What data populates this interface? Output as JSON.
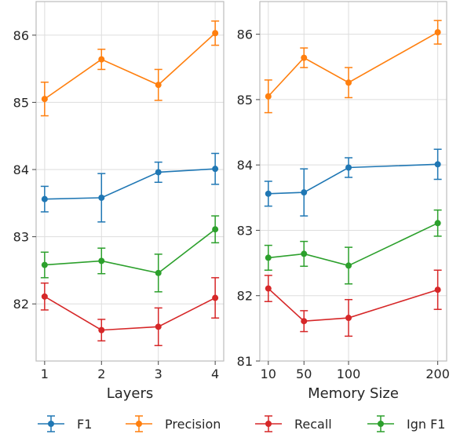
{
  "chart_data": [
    {
      "type": "line",
      "xlabel": "Layers",
      "ylabel": "",
      "x": [
        1,
        2,
        3,
        4
      ],
      "xticks": [
        1,
        2,
        3,
        4
      ],
      "xlim": [
        0.85,
        4.15
      ],
      "ylim": [
        81.15,
        86.5
      ],
      "yticks": [
        82,
        83,
        84,
        85,
        86
      ],
      "grid": true,
      "series": [
        {
          "name": "F1",
          "color": "#1f77b4",
          "values": [
            83.56,
            83.58,
            83.96,
            84.01
          ],
          "err_low": [
            83.37,
            83.22,
            83.81,
            83.78
          ],
          "err_high": [
            83.75,
            83.94,
            84.11,
            84.24
          ]
        },
        {
          "name": "Precision",
          "color": "#ff7f0e",
          "values": [
            85.05,
            85.64,
            85.26,
            86.03
          ],
          "err_low": [
            84.8,
            85.49,
            85.03,
            85.85
          ],
          "err_high": [
            85.3,
            85.79,
            85.49,
            86.21
          ]
        },
        {
          "name": "Recall",
          "color": "#d62728",
          "values": [
            82.11,
            81.61,
            81.66,
            82.09
          ],
          "err_low": [
            81.91,
            81.45,
            81.38,
            81.79
          ],
          "err_high": [
            82.31,
            81.77,
            81.94,
            82.39
          ]
        },
        {
          "name": "Ign F1",
          "color": "#2ca02c",
          "values": [
            82.58,
            82.64,
            82.46,
            83.11
          ],
          "err_low": [
            82.39,
            82.45,
            82.18,
            82.91
          ],
          "err_high": [
            82.77,
            82.83,
            82.74,
            83.31
          ]
        }
      ]
    },
    {
      "type": "line",
      "xlabel": "Memory Size",
      "ylabel": "",
      "x": [
        10,
        50,
        100,
        200
      ],
      "xticks": [
        10,
        50,
        100,
        200
      ],
      "xlim": [
        0.5,
        210
      ],
      "ylim": [
        81.0,
        86.5
      ],
      "yticks": [
        81,
        82,
        83,
        84,
        85,
        86
      ],
      "grid": true,
      "series": [
        {
          "name": "F1",
          "color": "#1f77b4",
          "values": [
            83.56,
            83.58,
            83.96,
            84.01
          ],
          "err_low": [
            83.37,
            83.22,
            83.81,
            83.78
          ],
          "err_high": [
            83.75,
            83.94,
            84.11,
            84.24
          ]
        },
        {
          "name": "Precision",
          "color": "#ff7f0e",
          "values": [
            85.05,
            85.64,
            85.26,
            86.03
          ],
          "err_low": [
            84.8,
            85.49,
            85.03,
            85.85
          ],
          "err_high": [
            85.3,
            85.79,
            85.49,
            86.21
          ]
        },
        {
          "name": "Recall",
          "color": "#d62728",
          "values": [
            82.11,
            81.61,
            81.66,
            82.09
          ],
          "err_low": [
            81.91,
            81.45,
            81.38,
            81.79
          ],
          "err_high": [
            82.31,
            81.77,
            81.94,
            82.39
          ]
        },
        {
          "name": "Ign F1",
          "color": "#2ca02c",
          "values": [
            82.58,
            82.64,
            82.46,
            83.11
          ],
          "err_low": [
            82.39,
            82.45,
            82.18,
            82.91
          ],
          "err_high": [
            82.77,
            82.83,
            82.74,
            83.31
          ]
        }
      ]
    }
  ],
  "legend": {
    "placement": "bottom",
    "entries": [
      "F1",
      "Precision",
      "Recall",
      "Ign F1"
    ]
  }
}
